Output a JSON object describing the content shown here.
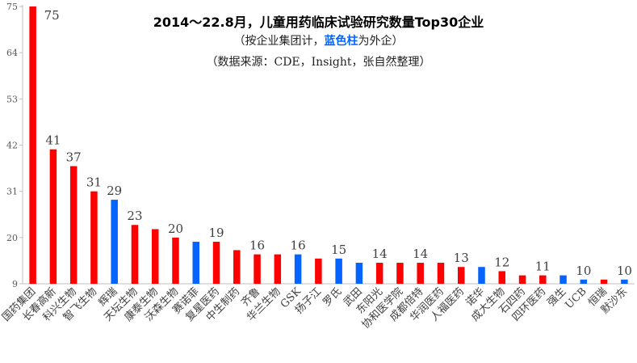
{
  "chart_data": {
    "type": "bar",
    "title": "2014～22.8月，儿童用药临床试验研究数量Top30企业",
    "subtitle": {
      "prefix": "（按企业集团计，",
      "highlight": "蓝色柱",
      "suffix": "为外企）"
    },
    "source": "（数据来源：CDE，Insight，张自然整理）",
    "y_ticks": [
      9,
      20,
      31,
      42,
      53,
      64,
      75
    ],
    "ylim": [
      9,
      75
    ],
    "grid": false,
    "bar_colors": {
      "domestic": "#ff0000",
      "foreign": "#0563ff"
    },
    "categories": [
      "国药集团",
      "长春高新",
      "科兴生物",
      "智飞生物",
      "辉瑞",
      "天坛生物",
      "康泰生物",
      "沃森生物",
      "赛诺菲",
      "复星医药",
      "中生制药",
      "齐鲁",
      "华兰生物",
      "GSK",
      "扬子江",
      "罗氏",
      "武田",
      "东阳光",
      "协和医学院",
      "成都倍特",
      "华润医药",
      "人福医药",
      "诺华",
      "成大生物",
      "石四药",
      "四环医药",
      "强生",
      "UCB",
      "恒瑞",
      "默沙东"
    ],
    "values": [
      75,
      41,
      37,
      31,
      29,
      23,
      22,
      20,
      19,
      19,
      17,
      16,
      16,
      16,
      15,
      15,
      14,
      14,
      14,
      14,
      14,
      13,
      13,
      12,
      11,
      11,
      11,
      10,
      10,
      10
    ],
    "foreign": [
      false,
      false,
      false,
      false,
      true,
      false,
      false,
      false,
      true,
      false,
      false,
      false,
      false,
      true,
      false,
      true,
      true,
      false,
      false,
      false,
      false,
      false,
      true,
      false,
      false,
      false,
      true,
      true,
      false,
      true
    ],
    "data_labels": [
      {
        "index": 0,
        "text": "75"
      },
      {
        "index": 1,
        "text": "41"
      },
      {
        "index": 2,
        "text": "37"
      },
      {
        "index": 3,
        "text": "31"
      },
      {
        "index": 4,
        "text": "29"
      },
      {
        "index": 5,
        "text": "23"
      },
      {
        "index": 7,
        "text": "20"
      },
      {
        "index": 9,
        "text": "19"
      },
      {
        "index": 11,
        "text": "16"
      },
      {
        "index": 13,
        "text": "16"
      },
      {
        "index": 15,
        "text": "15"
      },
      {
        "index": 17,
        "text": "14"
      },
      {
        "index": 19,
        "text": "14"
      },
      {
        "index": 21,
        "text": "13"
      },
      {
        "index": 23,
        "text": "12"
      },
      {
        "index": 25,
        "text": "11"
      },
      {
        "index": 27,
        "text": "10"
      },
      {
        "index": 29,
        "text": "10"
      }
    ]
  }
}
